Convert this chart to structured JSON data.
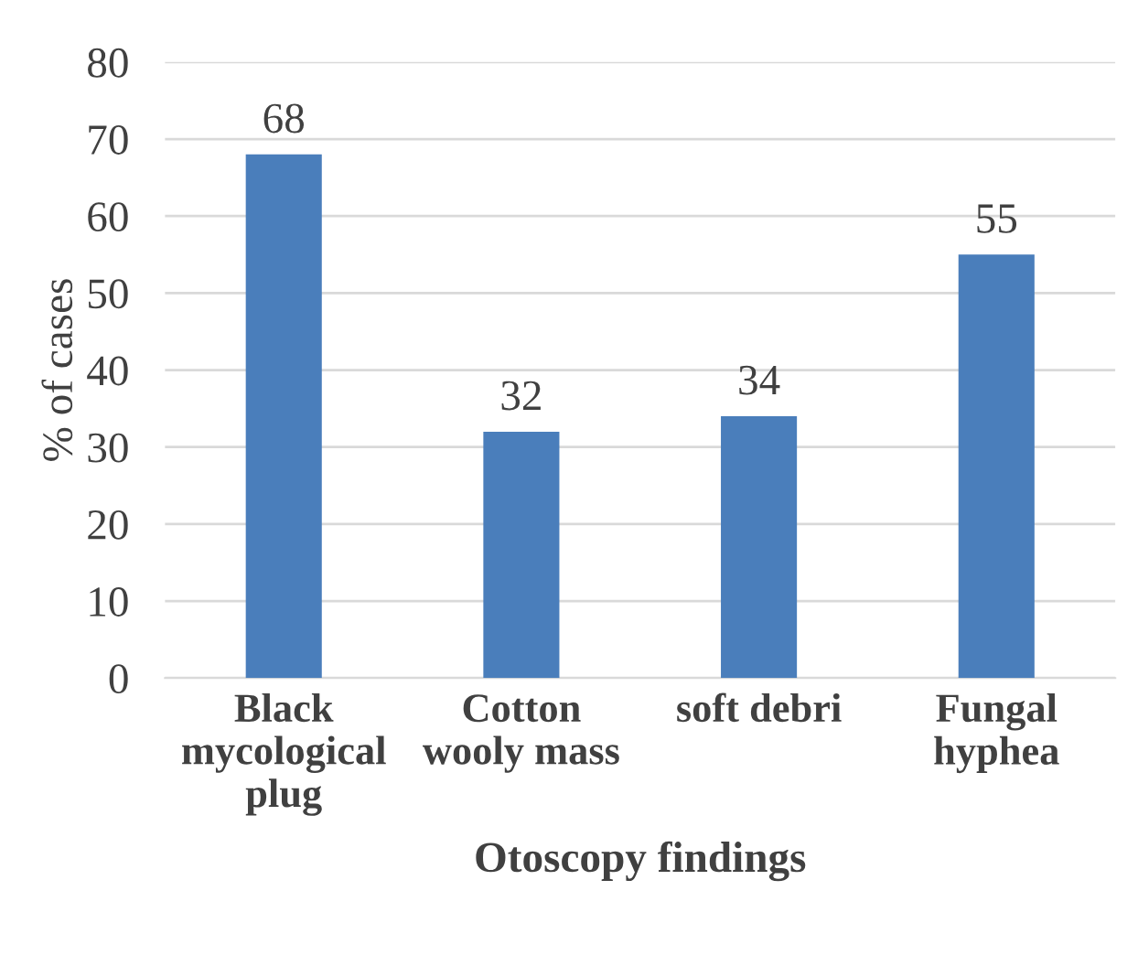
{
  "chart_data": {
    "type": "bar",
    "xlabel": "Otoscopy findings",
    "ylabel": "% of cases",
    "categories": [
      "Black\nmycological\nplug",
      "Cotton\nwooly mass",
      "soft debri",
      "Fungal\nhyphea"
    ],
    "values": [
      68,
      32,
      34,
      55
    ],
    "color": "#4a7ebb",
    "ylim": [
      0,
      80
    ],
    "yticks": [
      0,
      10,
      20,
      30,
      40,
      50,
      60,
      70,
      80
    ],
    "grid": "y",
    "data_labels": true
  }
}
